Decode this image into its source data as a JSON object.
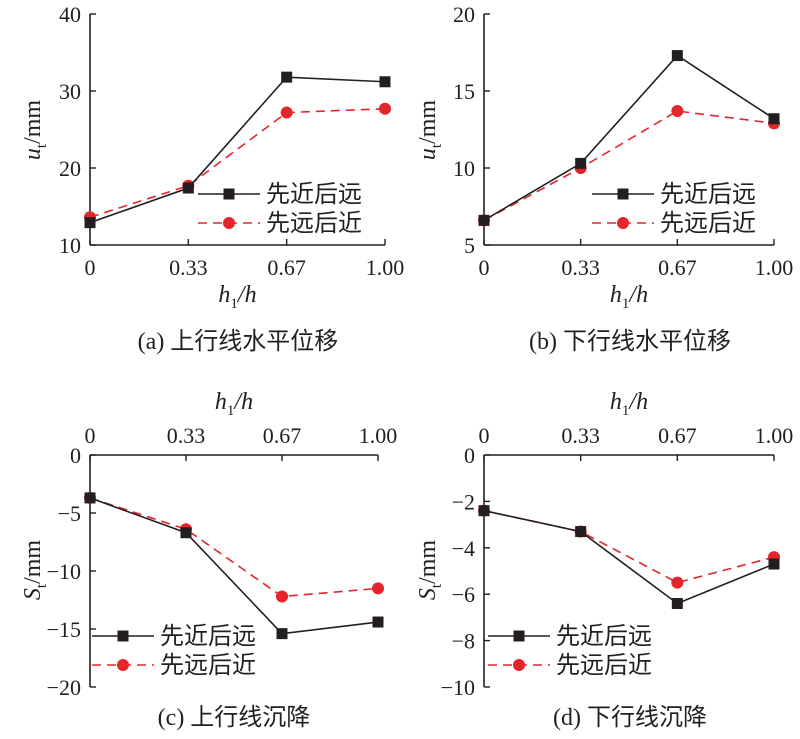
{
  "chart_data": [
    {
      "type": "line",
      "caption": "(a) 上行线水平位移",
      "xlabel": {
        "main": "h",
        "sub": "1",
        "rest": "/h"
      },
      "ylabel": {
        "main": "u",
        "sub": "t",
        "unit": "/mm"
      },
      "x": [
        "0",
        "0.33",
        "0.67",
        "1.00"
      ],
      "yticks": [
        "10",
        "20",
        "30",
        "40"
      ],
      "ylim": [
        10,
        40
      ],
      "xaxis_position": "bottom",
      "legend_position": "lower-right",
      "series": [
        {
          "name": "先近后远",
          "marker": "square",
          "color": "#231f20",
          "dash": "solid",
          "values": [
            12.9,
            17.4,
            31.8,
            31.2
          ]
        },
        {
          "name": "先远后近",
          "marker": "circle",
          "color": "#e4262b",
          "dash": "dashed",
          "values": [
            13.6,
            17.7,
            27.2,
            27.7
          ]
        }
      ]
    },
    {
      "type": "line",
      "caption": "(b) 下行线水平位移",
      "xlabel": {
        "main": "h",
        "sub": "1",
        "rest": "/h"
      },
      "ylabel": {
        "main": "u",
        "sub": "t",
        "unit": "/mm"
      },
      "x": [
        "0",
        "0.33",
        "0.67",
        "1.00"
      ],
      "yticks": [
        "5",
        "10",
        "15",
        "20"
      ],
      "ylim": [
        5,
        20
      ],
      "xaxis_position": "bottom",
      "legend_position": "lower-right",
      "series": [
        {
          "name": "先近后远",
          "marker": "square",
          "color": "#231f20",
          "dash": "solid",
          "values": [
            6.6,
            10.3,
            17.3,
            13.2
          ]
        },
        {
          "name": "先远后近",
          "marker": "circle",
          "color": "#e4262b",
          "dash": "dashed",
          "values": [
            6.6,
            10.0,
            13.7,
            12.9
          ]
        }
      ]
    },
    {
      "type": "line",
      "caption": "(c) 上行线沉降",
      "xlabel": {
        "main": "h",
        "sub": "1",
        "rest": "/h"
      },
      "ylabel": {
        "main": "S",
        "sub": "t",
        "unit": "/mm"
      },
      "x": [
        "0",
        "0.33",
        "0.67",
        "1.00"
      ],
      "yticks": [
        "-20",
        "-15",
        "-10",
        "-5",
        "0"
      ],
      "ylim": [
        -20,
        0
      ],
      "xaxis_position": "top",
      "legend_position": "lower-left",
      "series": [
        {
          "name": "先近后远",
          "marker": "square",
          "color": "#231f20",
          "dash": "solid",
          "values": [
            -3.7,
            -6.7,
            -15.4,
            -14.4
          ]
        },
        {
          "name": "先远后近",
          "marker": "circle",
          "color": "#e4262b",
          "dash": "dashed",
          "values": [
            -3.7,
            -6.4,
            -12.2,
            -11.5
          ]
        }
      ]
    },
    {
      "type": "line",
      "caption": "(d) 下行线沉降",
      "xlabel": {
        "main": "h",
        "sub": "1",
        "rest": "/h"
      },
      "ylabel": {
        "main": "S",
        "sub": "t",
        "unit": "/mm"
      },
      "x": [
        "0",
        "0.33",
        "0.67",
        "1.00"
      ],
      "yticks": [
        "-10",
        "-8",
        "-6",
        "-4",
        "-2",
        "0"
      ],
      "ylim": [
        -10,
        0
      ],
      "xaxis_position": "top",
      "legend_position": "lower-left",
      "series": [
        {
          "name": "先近后远",
          "marker": "square",
          "color": "#231f20",
          "dash": "solid",
          "values": [
            -2.4,
            -3.3,
            -6.4,
            -4.7
          ]
        },
        {
          "name": "先远后近",
          "marker": "circle",
          "color": "#e4262b",
          "dash": "dashed",
          "values": [
            -2.4,
            -3.3,
            -5.5,
            -4.4
          ]
        }
      ]
    }
  ]
}
